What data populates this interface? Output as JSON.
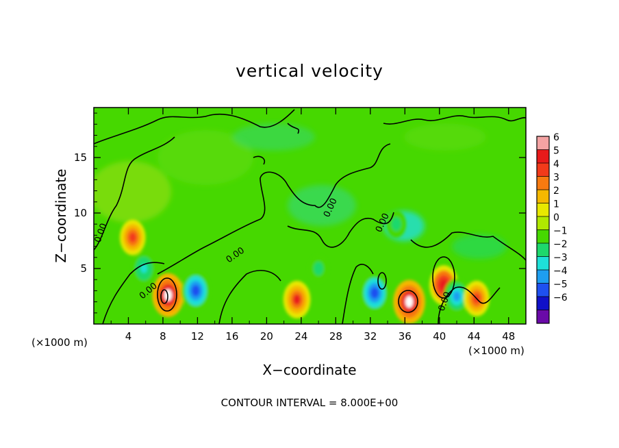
{
  "chart_data": {
    "type": "heatmap",
    "title": "vertical velocity",
    "xlabel": "X−coordinate",
    "ylabel": "Z−coordinate",
    "x_unit_left": "(×1000 m)",
    "x_unit_right": "(×1000 m)",
    "footer": "CONTOUR INTERVAL = 8.000E+00",
    "contour_label": "0.00",
    "xlim": [
      0,
      50
    ],
    "ylim": [
      0,
      19.5
    ],
    "x_ticks": [
      "4",
      "8",
      "12",
      "16",
      "20",
      "24",
      "28",
      "32",
      "36",
      "40",
      "44",
      "48"
    ],
    "y_ticks": [
      "5",
      "10",
      "15"
    ],
    "colorbar": {
      "levels": [
        "6",
        "5",
        "4",
        "3",
        "2",
        "1",
        "0",
        "−1",
        "−2",
        "−3",
        "−4",
        "−5",
        "−6"
      ],
      "colors": [
        "#f4a3a3",
        "#e81a1a",
        "#f23a1a",
        "#f77a10",
        "#f5b800",
        "#e8e800",
        "#b0e800",
        "#46d800",
        "#1ed86c",
        "#1ee0d8",
        "#1e9ef0",
        "#1e50f0",
        "#1010c8",
        "#6a0aa8"
      ]
    },
    "features": [
      {
        "x": 4.5,
        "z": 7.8,
        "w": 4.0,
        "type": "updraft"
      },
      {
        "x": 8.6,
        "z": 2.6,
        "w": 6.0,
        "type": "updraft"
      },
      {
        "x": 11.8,
        "z": 3.0,
        "w": -5.0,
        "type": "downdraft"
      },
      {
        "x": 23.5,
        "z": 2.2,
        "w": 4.5,
        "type": "updraft"
      },
      {
        "x": 32.5,
        "z": 2.8,
        "w": -5.0,
        "type": "downdraft"
      },
      {
        "x": 36.5,
        "z": 2.0,
        "w": 6.0,
        "type": "updraft"
      },
      {
        "x": 40.5,
        "z": 3.5,
        "w": 5.0,
        "type": "updraft"
      },
      {
        "x": 42.0,
        "z": 2.5,
        "w": -4.0,
        "type": "downdraft"
      },
      {
        "x": 44.3,
        "z": 2.3,
        "w": 4.0,
        "type": "updraft"
      },
      {
        "x": 5.8,
        "z": 5.0,
        "w": -3.0,
        "type": "downdraft"
      },
      {
        "x": 26.0,
        "z": 5.0,
        "w": -2.0,
        "type": "downdraft"
      },
      {
        "x": 35.0,
        "z": 9.0,
        "w": -2.0,
        "type": "downdraft"
      }
    ]
  }
}
